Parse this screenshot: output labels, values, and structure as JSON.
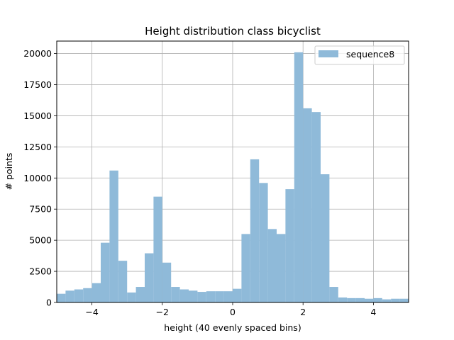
{
  "chart_data": {
    "type": "bar",
    "title": "Height distribution class bicyclist",
    "xlabel": "height (40 evenly spaced bins)",
    "ylabel": "# points",
    "xlim": [
      -5,
      5
    ],
    "ylim": [
      0,
      21000
    ],
    "xticks": [
      -4,
      -2,
      0,
      2,
      4
    ],
    "xtick_labels": [
      "−4",
      "−2",
      "0",
      "2",
      "4"
    ],
    "yticks": [
      0,
      2500,
      5000,
      7500,
      10000,
      12500,
      15000,
      17500,
      20000
    ],
    "ytick_labels": [
      "0",
      "2500",
      "5000",
      "7500",
      "10000",
      "12500",
      "15000",
      "17500",
      "20000"
    ],
    "grid": true,
    "legend_position": "top-right",
    "bin_edges": [
      -5.0,
      -4.75,
      -4.5,
      -4.25,
      -4.0,
      -3.75,
      -3.5,
      -3.25,
      -3.0,
      -2.75,
      -2.5,
      -2.25,
      -2.0,
      -1.75,
      -1.5,
      -1.25,
      -1.0,
      -0.75,
      -0.5,
      -0.25,
      0.0,
      0.25,
      0.5,
      0.75,
      1.0,
      1.25,
      1.5,
      1.75,
      2.0,
      2.25,
      2.5,
      2.75,
      3.0,
      3.25,
      3.5,
      3.75,
      4.0,
      4.25,
      4.5,
      4.75,
      5.0
    ],
    "series": [
      {
        "name": "sequence8",
        "color": "#8fbad9",
        "values": [
          700,
          950,
          1050,
          1150,
          1550,
          4800,
          10600,
          3350,
          800,
          1250,
          3950,
          8500,
          3200,
          1250,
          1050,
          950,
          850,
          900,
          900,
          900,
          1100,
          5500,
          11500,
          9600,
          5900,
          5500,
          9100,
          20100,
          15600,
          15300,
          10300,
          1250,
          400,
          350,
          350,
          300,
          350,
          250,
          300,
          300
        ]
      }
    ]
  }
}
